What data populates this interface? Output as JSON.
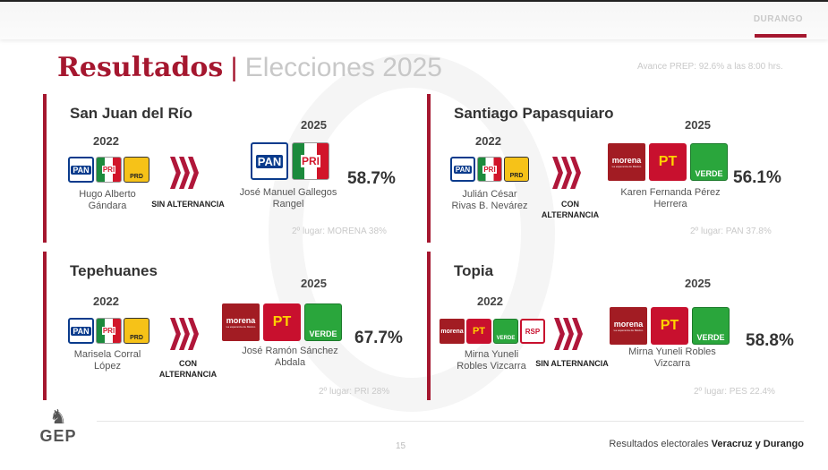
{
  "header": {
    "region": "DURANGO"
  },
  "title": {
    "main": "Resultados",
    "separator": "|",
    "sub": "Elecciones 2025"
  },
  "prep_note": "Avance PREP: 92.6% a las 8:00 hrs.",
  "panels": [
    {
      "name": "San Juan del Río",
      "year_prev": "2022",
      "year_new": "2025",
      "prev_logos": [
        "PAN",
        "PRI",
        "PRD"
      ],
      "prev_candidate": "Hugo Alberto Gándara",
      "alternation": "SIN ALTERNANCIA",
      "new_logos": [
        "PAN",
        "PRI"
      ],
      "new_candidate": "José Manuel Gallegos Rangel",
      "percent": "58.7%",
      "second": "2º lugar: MORENA 38%"
    },
    {
      "name": "Santiago Papasquiaro",
      "year_prev": "2022",
      "year_new": "2025",
      "prev_logos": [
        "PAN",
        "PRI",
        "PRD"
      ],
      "prev_candidate": "Julián César Rivas B. Nevárez",
      "alternation": "CON ALTERNANCIA",
      "new_logos": [
        "morena",
        "PT",
        "VERDE"
      ],
      "new_candidate": "Karen Fernanda Pérez Herrera",
      "percent": "56.1%",
      "second": "2º lugar: PAN 37.8%"
    },
    {
      "name": "Tepehuanes",
      "year_prev": "2022",
      "year_new": "2025",
      "prev_logos": [
        "PAN",
        "PRI",
        "PRD"
      ],
      "prev_candidate": "Marisela Corral López",
      "alternation": "CON ALTERNANCIA",
      "new_logos": [
        "morena",
        "PT",
        "VERDE"
      ],
      "new_candidate": "José Ramón Sánchez Abdala",
      "percent": "67.7%",
      "second": "2º lugar: PRI 28%"
    },
    {
      "name": "Topia",
      "year_prev": "2022",
      "year_new": "2025",
      "prev_logos": [
        "morena",
        "PT",
        "VERDE",
        "RSP"
      ],
      "prev_candidate": "Mirna Yuneli Robles Vizcarra",
      "alternation": "SIN ALTERNANCIA",
      "new_logos": [
        "morena",
        "PT",
        "VERDE"
      ],
      "new_candidate": "Mirna Yuneli Robles Vizcarra",
      "percent": "58.8%",
      "second": "2º lugar: PES 22.4%"
    }
  ],
  "logo_text": {
    "morena": "morena",
    "morena_tag": "La esperanza de México",
    "pt": "PT",
    "verde": "VERDE",
    "pan": "PAN",
    "pri": "PRI",
    "prd": "PRD",
    "rsp": "RSP"
  },
  "footer": {
    "brand": "GEP",
    "page": "15",
    "text": "Resultados electorales",
    "bold": "Veracruz y Durango"
  },
  "colors": {
    "accent": "#a5172f",
    "chevron": "#b0173a"
  }
}
